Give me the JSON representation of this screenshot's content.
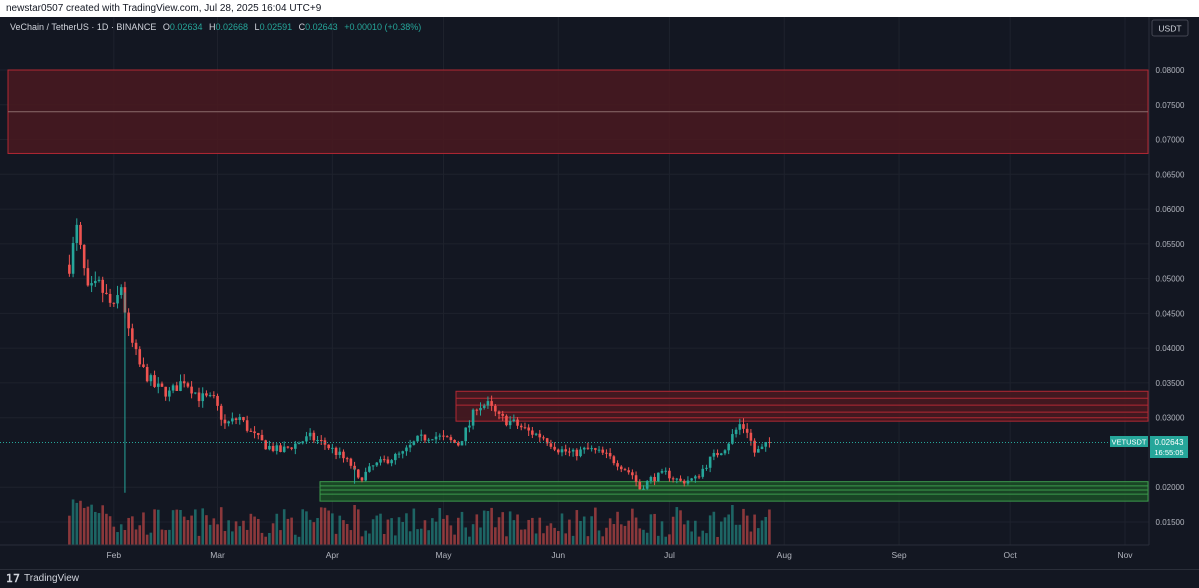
{
  "header": {
    "text": "newstar0507 created with TradingView.com, Jul 28, 2025 16:04 UTC+9"
  },
  "legend": {
    "symbol": "VeChain / TetherUS · 1D · BINANCE",
    "o_label": "O",
    "o_value": "0.02634",
    "h_label": "H",
    "h_value": "0.02668",
    "l_label": "L",
    "l_value": "0.02591",
    "c_label": "C",
    "c_value": "0.02643",
    "change": "+0.00010 (+0.38%)"
  },
  "currency_button": "USDT",
  "price_badge": {
    "ticker": "VETUSDT",
    "price": "0.02643",
    "countdown": "16:55:05"
  },
  "footer": {
    "brand": "TradingView"
  },
  "colors": {
    "background": "#131722",
    "up": "#26a69a",
    "down": "#ef5350",
    "resistance_zone": "#4a1920",
    "support_zone": "#1b4d26",
    "price_line": "#26a69a"
  },
  "chart_data": {
    "type": "candlestick",
    "y_ticks": [
      "0.08000",
      "0.07500",
      "0.07000",
      "0.06500",
      "0.06000",
      "0.05500",
      "0.05000",
      "0.04500",
      "0.04000",
      "0.03500",
      "0.03000",
      "0.02000",
      "0.01500"
    ],
    "x_ticks": [
      "Feb",
      "Mar",
      "Apr",
      "May",
      "Jun",
      "Jul",
      "Aug",
      "Sep",
      "Oct",
      "Nov"
    ],
    "ylim": [
      0.012,
      0.0835
    ],
    "current_price": 0.02643,
    "zones": [
      {
        "kind": "resistance",
        "top": 0.08,
        "bottom": 0.068,
        "midline": 0.074
      },
      {
        "kind": "resistance",
        "top": 0.0338,
        "bottom": 0.0295,
        "lines": [
          0.0328,
          0.0318,
          0.0308,
          0.03
        ]
      },
      {
        "kind": "support",
        "top": 0.0208,
        "bottom": 0.018,
        "lines": [
          0.0202,
          0.0196,
          0.019
        ]
      }
    ],
    "path": [
      [
        "Jan 20",
        0.052
      ],
      [
        "Jan 22",
        0.057
      ],
      [
        "Jan 25",
        0.048
      ],
      [
        "Jan 28",
        0.049
      ],
      [
        "Feb 1",
        0.0455
      ],
      [
        "Feb 3",
        0.049
      ],
      [
        "Feb 5",
        0.042
      ],
      [
        "Feb 8",
        0.0375
      ],
      [
        "Feb 12",
        0.0345
      ],
      [
        "Feb 16",
        0.0335
      ],
      [
        "Feb 20",
        0.0355
      ],
      [
        "Feb 24",
        0.033
      ],
      [
        "Feb 28",
        0.0325
      ],
      [
        "Mar 3",
        0.029
      ],
      [
        "Mar 7",
        0.03
      ],
      [
        "Mar 10",
        0.0278
      ],
      [
        "Mar 14",
        0.026
      ],
      [
        "Mar 18",
        0.0252
      ],
      [
        "Mar 22",
        0.0262
      ],
      [
        "Mar 26",
        0.0272
      ],
      [
        "Mar 30",
        0.0262
      ],
      [
        "Apr 3",
        0.0246
      ],
      [
        "Apr 6",
        0.0232
      ],
      [
        "Apr 8",
        0.021
      ],
      [
        "Apr 12",
        0.023
      ],
      [
        "Apr 16",
        0.024
      ],
      [
        "Apr 20",
        0.0248
      ],
      [
        "Apr 24",
        0.0268
      ],
      [
        "Apr 28",
        0.0275
      ],
      [
        "May 2",
        0.0268
      ],
      [
        "May 5",
        0.0262
      ],
      [
        "May 8",
        0.029
      ],
      [
        "May 10",
        0.0318
      ],
      [
        "May 13",
        0.0318
      ],
      [
        "May 16",
        0.03
      ],
      [
        "May 20",
        0.0292
      ],
      [
        "May 24",
        0.028
      ],
      [
        "May 28",
        0.0272
      ],
      [
        "Jun 1",
        0.0255
      ],
      [
        "Jun 5",
        0.0248
      ],
      [
        "Jun 9",
        0.0255
      ],
      [
        "Jun 13",
        0.0248
      ],
      [
        "Jun 17",
        0.0235
      ],
      [
        "Jun 21",
        0.0218
      ],
      [
        "Jun 23",
        0.0198
      ],
      [
        "Jun 26",
        0.0212
      ],
      [
        "Jun 30",
        0.022
      ],
      [
        "Jul 4",
        0.0208
      ],
      [
        "Jul 8",
        0.0212
      ],
      [
        "Jul 12",
        0.024
      ],
      [
        "Jul 16",
        0.0258
      ],
      [
        "Jul 20",
        0.029
      ],
      [
        "Jul 22",
        0.0282
      ],
      [
        "Jul 24",
        0.025
      ],
      [
        "Jul 26",
        0.0255
      ],
      [
        "Jul 28",
        0.0264
      ]
    ]
  }
}
